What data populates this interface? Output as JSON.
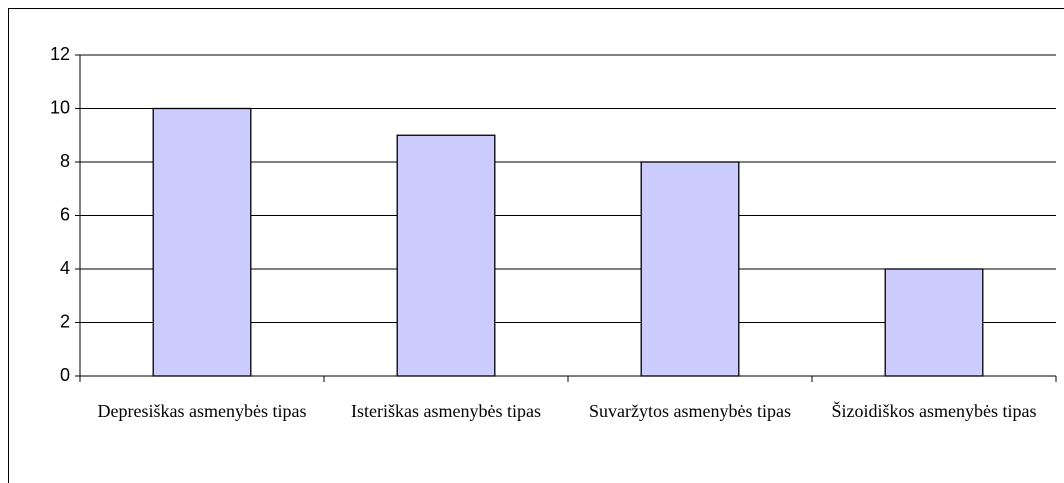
{
  "chart_data": {
    "type": "bar",
    "categories": [
      "Depresiškas asmenybės tipas",
      "Isteriškas asmenybės tipas",
      "Suvaržytos asmenybės tipas",
      "Šizoidiškos asmenybės tipas"
    ],
    "values": [
      10,
      9,
      8,
      4
    ],
    "color": "#ccccff",
    "ylim": [
      0,
      12
    ],
    "yticks": [
      0,
      2,
      4,
      6,
      8,
      10,
      12
    ],
    "grid": true
  }
}
